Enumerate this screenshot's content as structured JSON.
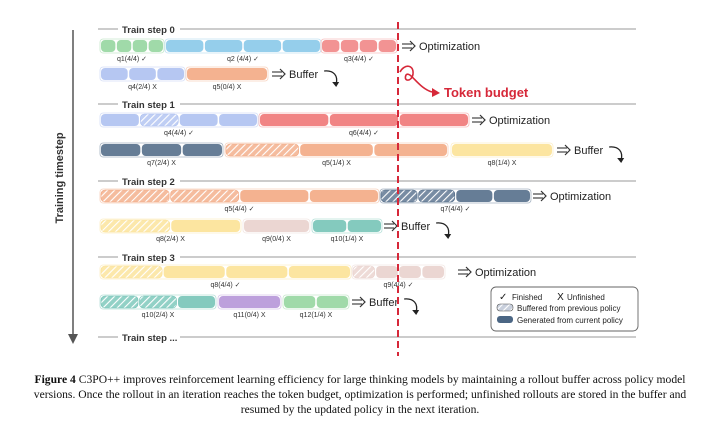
{
  "axis_label": "Training timestep",
  "steps": [
    {
      "label": "Train step 0"
    },
    {
      "label": "Train step 1"
    },
    {
      "label": "Train step 2"
    },
    {
      "label": "Train step 3"
    },
    {
      "label": "Train step ..."
    }
  ],
  "actions": {
    "optimization": "Optimization",
    "buffer": "Buffer"
  },
  "token_budget": "Token budget",
  "rows": [
    {
      "action": "optimization",
      "groups": [
        {
          "label": "q1(4/4) ✓",
          "color": "#8fd49a",
          "segs": [
            [
              0,
              "#8fd49a"
            ],
            [
              0,
              "#8fd49a"
            ],
            [
              0,
              "#8fd49a"
            ],
            [
              0,
              "#8fd49a"
            ]
          ]
        },
        {
          "label": "q2 (4/4) ✓",
          "color": "#82c6e8",
          "segs": [
            [
              0,
              "#82c6e8"
            ],
            [
              0,
              "#82c6e8"
            ],
            [
              0,
              "#82c6e8"
            ],
            [
              0,
              "#82c6e8"
            ]
          ]
        },
        {
          "label": "q3(4/4) ✓",
          "color": "#f08080",
          "segs": [
            [
              0,
              "#f08080"
            ],
            [
              0,
              "#f08080"
            ],
            [
              0,
              "#f08080"
            ],
            [
              0,
              "#f08080"
            ]
          ]
        }
      ]
    },
    {
      "action": "buffer",
      "groups": [
        {
          "label": "q4(2/4) X",
          "color": "#a9bdf0",
          "segs": [
            [
              0,
              "#a9bdf0"
            ],
            [
              0,
              "#a9bdf0"
            ],
            [
              0,
              "#a9bdf0"
            ]
          ]
        },
        {
          "label": "q5(0/4) X",
          "color": "#f2a57d",
          "segs": [
            [
              0,
              "#f2a57d"
            ]
          ]
        }
      ]
    },
    {
      "action": "optimization",
      "groups": [
        {
          "label": "q4(4/4) ✓",
          "color": "#a9bdf0",
          "segs": [
            [
              0,
              "#a9bdf0"
            ],
            [
              1,
              "#a9bdf0"
            ],
            [
              0,
              "#a9bdf0"
            ],
            [
              0,
              "#a9bdf0"
            ]
          ]
        },
        {
          "label": "q6(4/4) ✓",
          "color": "#ef6f6f",
          "segs": [
            [
              0,
              "#ef6f6f"
            ],
            [
              0,
              "#ef6f6f"
            ],
            [
              0,
              "#ef6f6f"
            ]
          ]
        }
      ]
    },
    {
      "action": "buffer",
      "groups": [
        {
          "label": "q7(2/4) X",
          "color": "#4b6684",
          "segs": [
            [
              0,
              "#4b6684"
            ],
            [
              0,
              "#4b6684"
            ],
            [
              0,
              "#4b6684"
            ]
          ]
        },
        {
          "label": "q5(1/4) X",
          "color": "#f2a57d",
          "segs": [
            [
              1,
              "#f2a57d"
            ],
            [
              0,
              "#f2a57d"
            ],
            [
              0,
              "#f2a57d"
            ]
          ]
        },
        {
          "label": "q8(1/4) X",
          "color": "#fbe08f",
          "segs": [
            [
              0,
              "#fbe08f"
            ]
          ]
        }
      ]
    },
    {
      "action": "optimization",
      "groups": [
        {
          "label": "q5(4/4) ✓",
          "color": "#f2a57d",
          "segs": [
            [
              1,
              "#f2a57d"
            ],
            [
              1,
              "#f2a57d"
            ],
            [
              0,
              "#f2a57d"
            ],
            [
              0,
              "#f2a57d"
            ]
          ]
        },
        {
          "label": "q7(4/4) ✓",
          "color": "#4b6684",
          "segs": [
            [
              1,
              "#4b6684"
            ],
            [
              1,
              "#4b6684"
            ],
            [
              0,
              "#4b6684"
            ],
            [
              0,
              "#4b6684"
            ]
          ]
        }
      ]
    },
    {
      "action": "buffer",
      "groups": [
        {
          "label": "q8(2/4) X",
          "color": "#fbe08f",
          "segs": [
            [
              1,
              "#fbe08f"
            ],
            [
              0,
              "#fbe08f"
            ]
          ]
        },
        {
          "label": "q9(0/4) X",
          "color": "#e8cfca",
          "segs": [
            [
              0,
              "#e8cfca"
            ]
          ]
        },
        {
          "label": "q10(1/4) X",
          "color": "#6ec1b3",
          "segs": [
            [
              0,
              "#6ec1b3"
            ],
            [
              0,
              "#6ec1b3"
            ]
          ]
        }
      ]
    },
    {
      "action": "optimization",
      "groups": [
        {
          "label": "q8(4/4) ✓",
          "color": "#fbe08f",
          "segs": [
            [
              1,
              "#fbe08f"
            ],
            [
              0,
              "#fbe08f"
            ],
            [
              0,
              "#fbe08f"
            ],
            [
              0,
              "#fbe08f"
            ]
          ]
        },
        {
          "label": "q9(4/4) ✓",
          "color": "#e8cfca",
          "segs": [
            [
              1,
              "#e8cfca"
            ],
            [
              0,
              "#e8cfca"
            ],
            [
              0,
              "#e8cfca"
            ],
            [
              0,
              "#e8cfca"
            ]
          ]
        }
      ]
    },
    {
      "action": "buffer",
      "groups": [
        {
          "label": "q10(2/4) X",
          "color": "#6ec1b3",
          "segs": [
            [
              1,
              "#6ec1b3"
            ],
            [
              1,
              "#6ec1b3"
            ],
            [
              0,
              "#6ec1b3"
            ]
          ]
        },
        {
          "label": "q11(0/4) X",
          "color": "#b28fd6",
          "segs": [
            [
              0,
              "#b28fd6"
            ]
          ]
        },
        {
          "label": "q12(1/4) X",
          "color": "#8fd49a",
          "segs": [
            [
              0,
              "#8fd49a"
            ],
            [
              0,
              "#8fd49a"
            ]
          ]
        }
      ]
    }
  ],
  "legend": {
    "finished": "Finished",
    "unfinished": "Unfinished",
    "buffered": "Buffered from previous policy",
    "generated": "Generated from current policy"
  },
  "caption": {
    "label": "Figure 4",
    "text": "C3PO++ improves reinforcement learning efficiency for large thinking models by maintaining a rollout buffer across policy model versions. Once the rollout in an iteration reaches the token budget, optimization is performed; unfinished rollouts are stored in the buffer and resumed by the updated policy in the next iteration."
  },
  "colors": {
    "budget": "#d62839",
    "axis": "#555555",
    "rule": "#9a9a9a"
  }
}
